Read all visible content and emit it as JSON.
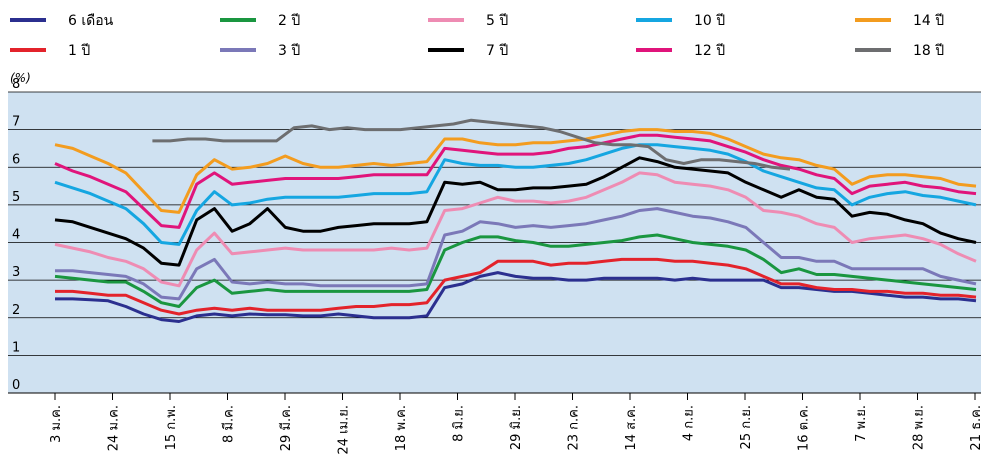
{
  "chart_data": {
    "type": "line",
    "unit_label": "(%)",
    "ylim": [
      0,
      8
    ],
    "y_ticks": [
      "0",
      "1",
      "2",
      "3",
      "4",
      "5",
      "6",
      "7",
      "8"
    ],
    "grid": "horizontal",
    "background": "#cfe1f1",
    "x_ticks": [
      "3 ม.ค.",
      "24 ม.ค.",
      "15 ก.พ.",
      "8 มี.ค.",
      "29 มี.ค.",
      "24 เม.ย.",
      "18 พ.ค.",
      "8 มิ.ย.",
      "29 มิ.ย.",
      "23 ก.ค.",
      "14 ส.ค.",
      "4 ก.ย.",
      "25 ก.ย.",
      "16 ต.ค.",
      "7 พ.ย.",
      "28 พ.ย.",
      "21 ธ.ค."
    ],
    "legend_position": "top",
    "series": [
      {
        "name": "6 เดือน",
        "color": "#2b2f8f",
        "x_start": 0,
        "values": [
          2.5,
          2.5,
          2.48,
          2.45,
          2.3,
          2.1,
          1.95,
          1.9,
          2.05,
          2.1,
          2.05,
          2.1,
          2.08,
          2.08,
          2.05,
          2.05,
          2.1,
          2.05,
          2.0,
          2.0,
          2.0,
          2.05,
          2.8,
          2.9,
          3.1,
          3.2,
          3.1,
          3.05,
          3.05,
          3.0,
          3.0,
          3.05,
          3.05,
          3.05,
          3.05,
          3.0,
          3.05,
          3.0,
          3.0,
          3.0,
          3.0,
          2.8,
          2.8,
          2.75,
          2.7,
          2.7,
          2.65,
          2.6,
          2.55,
          2.55,
          2.5,
          2.5,
          2.45
        ]
      },
      {
        "name": "1 ปี",
        "color": "#e3232b",
        "x_start": 0,
        "values": [
          2.7,
          2.7,
          2.65,
          2.6,
          2.6,
          2.4,
          2.2,
          2.1,
          2.2,
          2.25,
          2.2,
          2.25,
          2.2,
          2.2,
          2.2,
          2.2,
          2.25,
          2.3,
          2.3,
          2.35,
          2.35,
          2.4,
          3.0,
          3.1,
          3.2,
          3.5,
          3.5,
          3.5,
          3.4,
          3.45,
          3.45,
          3.5,
          3.55,
          3.55,
          3.55,
          3.5,
          3.5,
          3.45,
          3.4,
          3.3,
          3.1,
          2.9,
          2.9,
          2.8,
          2.75,
          2.75,
          2.7,
          2.7,
          2.65,
          2.65,
          2.6,
          2.6,
          2.55
        ]
      },
      {
        "name": "2 ปี",
        "color": "#1a9640",
        "x_start": 0,
        "values": [
          3.1,
          3.05,
          3.0,
          2.95,
          2.95,
          2.7,
          2.4,
          2.3,
          2.8,
          3.0,
          2.65,
          2.7,
          2.75,
          2.7,
          2.7,
          2.7,
          2.7,
          2.7,
          2.7,
          2.7,
          2.7,
          2.75,
          3.8,
          4.0,
          4.15,
          4.15,
          4.05,
          4.0,
          3.9,
          3.9,
          3.95,
          4.0,
          4.05,
          4.15,
          4.2,
          4.1,
          4.0,
          3.95,
          3.9,
          3.8,
          3.55,
          3.2,
          3.3,
          3.15,
          3.15,
          3.1,
          3.05,
          3.0,
          2.95,
          2.9,
          2.85,
          2.8,
          2.75
        ]
      },
      {
        "name": "3 ปี",
        "color": "#7b78b8",
        "x_start": 0,
        "values": [
          3.25,
          3.25,
          3.2,
          3.15,
          3.1,
          2.9,
          2.55,
          2.5,
          3.3,
          3.55,
          2.95,
          2.9,
          2.95,
          2.9,
          2.9,
          2.85,
          2.85,
          2.85,
          2.85,
          2.85,
          2.85,
          2.9,
          4.2,
          4.3,
          4.55,
          4.5,
          4.4,
          4.45,
          4.4,
          4.45,
          4.5,
          4.6,
          4.7,
          4.85,
          4.9,
          4.8,
          4.7,
          4.65,
          4.55,
          4.4,
          4.0,
          3.6,
          3.6,
          3.5,
          3.5,
          3.3,
          3.3,
          3.3,
          3.3,
          3.3,
          3.1,
          3.0,
          2.9
        ]
      },
      {
        "name": "5 ปี",
        "color": "#ee8cb3",
        "x_start": 0,
        "values": [
          3.95,
          3.85,
          3.75,
          3.6,
          3.5,
          3.3,
          2.95,
          2.85,
          3.8,
          4.25,
          3.7,
          3.75,
          3.8,
          3.85,
          3.8,
          3.8,
          3.8,
          3.8,
          3.8,
          3.85,
          3.8,
          3.85,
          4.85,
          4.9,
          5.05,
          5.2,
          5.1,
          5.1,
          5.05,
          5.1,
          5.2,
          5.4,
          5.6,
          5.85,
          5.8,
          5.6,
          5.55,
          5.5,
          5.4,
          5.2,
          4.85,
          4.8,
          4.7,
          4.5,
          4.4,
          4.0,
          4.1,
          4.15,
          4.2,
          4.1,
          3.95,
          3.7,
          3.5
        ]
      },
      {
        "name": "7 ปี",
        "color": "#000000",
        "x_start": 0,
        "values": [
          4.6,
          4.55,
          4.4,
          4.25,
          4.1,
          3.85,
          3.45,
          3.4,
          4.6,
          4.9,
          4.3,
          4.5,
          4.9,
          4.4,
          4.3,
          4.3,
          4.4,
          4.45,
          4.5,
          4.5,
          4.5,
          4.55,
          5.6,
          5.55,
          5.6,
          5.4,
          5.4,
          5.45,
          5.45,
          5.5,
          5.55,
          5.75,
          6.0,
          6.25,
          6.15,
          6.0,
          5.95,
          5.9,
          5.85,
          5.6,
          5.4,
          5.2,
          5.4,
          5.2,
          5.15,
          4.7,
          4.8,
          4.75,
          4.6,
          4.5,
          4.25,
          4.1,
          4.0
        ]
      },
      {
        "name": "10 ปี",
        "color": "#15a6e1",
        "x_start": 0,
        "values": [
          5.6,
          5.45,
          5.3,
          5.1,
          4.9,
          4.5,
          4.0,
          3.95,
          4.85,
          5.35,
          5.0,
          5.05,
          5.15,
          5.2,
          5.2,
          5.2,
          5.2,
          5.25,
          5.3,
          5.3,
          5.3,
          5.35,
          6.2,
          6.1,
          6.05,
          6.05,
          6.0,
          6.0,
          6.05,
          6.1,
          6.2,
          6.35,
          6.5,
          6.6,
          6.6,
          6.55,
          6.5,
          6.45,
          6.35,
          6.15,
          5.9,
          5.75,
          5.6,
          5.45,
          5.4,
          5.0,
          5.2,
          5.3,
          5.35,
          5.25,
          5.2,
          5.1,
          5.0
        ]
      },
      {
        "name": "12 ปี",
        "color": "#e0147b",
        "x_start": 0,
        "values": [
          6.1,
          5.9,
          5.75,
          5.55,
          5.35,
          4.9,
          4.45,
          4.4,
          5.55,
          5.85,
          5.55,
          5.6,
          5.65,
          5.7,
          5.7,
          5.7,
          5.7,
          5.75,
          5.8,
          5.8,
          5.8,
          5.8,
          6.5,
          6.45,
          6.4,
          6.35,
          6.35,
          6.35,
          6.4,
          6.5,
          6.55,
          6.65,
          6.75,
          6.85,
          6.85,
          6.8,
          6.75,
          6.7,
          6.55,
          6.4,
          6.2,
          6.05,
          5.95,
          5.8,
          5.7,
          5.3,
          5.5,
          5.55,
          5.6,
          5.5,
          5.45,
          5.35,
          5.3
        ]
      },
      {
        "name": "14 ปี",
        "color": "#f39c1f",
        "x_start": 0,
        "values": [
          6.6,
          6.5,
          6.3,
          6.1,
          5.85,
          5.35,
          4.85,
          4.8,
          5.8,
          6.2,
          5.95,
          6.0,
          6.1,
          6.3,
          6.1,
          6.0,
          6.0,
          6.05,
          6.1,
          6.05,
          6.1,
          6.15,
          6.75,
          6.75,
          6.65,
          6.6,
          6.6,
          6.65,
          6.65,
          6.7,
          6.75,
          6.85,
          6.95,
          7.0,
          7.0,
          6.95,
          6.95,
          6.9,
          6.75,
          6.55,
          6.35,
          6.25,
          6.2,
          6.05,
          5.95,
          5.55,
          5.75,
          5.8,
          5.8,
          5.75,
          5.7,
          5.55,
          5.5
        ]
      },
      {
        "name": "18 ปี",
        "color": "#6d6e70",
        "x_start": 5.5,
        "values": [
          6.7,
          6.7,
          6.75,
          6.75,
          6.7,
          6.7,
          6.7,
          6.7,
          7.05,
          7.1,
          7.0,
          7.05,
          7.0,
          7.0,
          7.0,
          7.05,
          7.1,
          7.15,
          7.25,
          7.2,
          7.15,
          7.1,
          7.05,
          6.95,
          6.8,
          6.65,
          6.6,
          6.6,
          6.55,
          6.2,
          6.1,
          6.2,
          6.2,
          6.15,
          6.1,
          6.0,
          5.95
        ]
      }
    ]
  }
}
